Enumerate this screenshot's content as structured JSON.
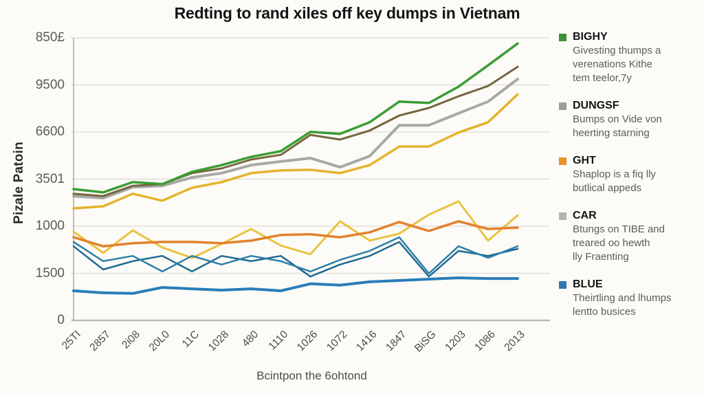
{
  "title": "Redting to rand xiles off key dumps in Vietnam",
  "y_axis": {
    "label": "Pizale Patoin",
    "ticks": [
      "850£",
      "9500",
      "6600",
      "3501",
      "1000",
      "1500",
      "0"
    ]
  },
  "x_axis": {
    "label": "Bcintpon the 6ohtond",
    "ticks": [
      "25TI",
      "2857",
      "2i08",
      "20L0",
      "11C",
      "1028",
      "480",
      "1110",
      "1026",
      "1072",
      "1416",
      "1847",
      "BiSG",
      "1203",
      "1086",
      "2013"
    ]
  },
  "legend": {
    "items": [
      {
        "name": "BIGHY",
        "color": "#3f9136",
        "desc": [
          "Givesting thumps a",
          "verenations Kithe",
          "tem teelor,7y"
        ]
      },
      {
        "name": "DUNGSF",
        "color": "#9d9d9a",
        "desc": [
          "Bumps on Vide von",
          "heerting starning"
        ]
      },
      {
        "name": "GHT",
        "color": "#e9932b",
        "desc": [
          "Shaplop is a fiq lly",
          "butlical appeds"
        ]
      },
      {
        "name": "CAR",
        "color": "#b3b3af",
        "desc": [
          "Btungs on TIBE and",
          "treared oo hewth",
          "lly Fraenting"
        ]
      },
      {
        "name": "BLUE",
        "color": "#2f79ae",
        "desc": [
          "Theirtling and lhumps",
          "lentto busices"
        ]
      }
    ]
  },
  "chart_data": {
    "type": "line",
    "title": "Redting to rand xiles off key dumps in Vietnam",
    "xlabel": "Bcintpon the 6ohtond",
    "ylabel": "Pizale Patoin",
    "x_labels": [
      "25TI",
      "2857",
      "2i08",
      "20L0",
      "11C",
      "1028",
      "480",
      "1110",
      "1026",
      "1072",
      "1416",
      "1847",
      "BiSG",
      "1203",
      "1086",
      "2013"
    ],
    "y_tick_labels": [
      "850£",
      "9500",
      "6600",
      "3501",
      "1000",
      "1500",
      "0"
    ],
    "ylim": [
      0,
      8500
    ],
    "grid": true,
    "legend_position": "right",
    "series": [
      {
        "name": "gold-line",
        "color": "#e5b32d",
        "width": 3.5,
        "values": [
          3370,
          3430,
          3810,
          3600,
          3990,
          4160,
          4430,
          4510,
          4530,
          4430,
          4670,
          5230,
          5230,
          5650,
          5960,
          6800
        ]
      },
      {
        "name": "dungsf-gray-line",
        "color": "#a8a8a4",
        "width": 4,
        "values": [
          3740,
          3680,
          4010,
          4050,
          4300,
          4430,
          4670,
          4780,
          4880,
          4610,
          4940,
          5870,
          5870,
          6230,
          6580,
          7260
        ]
      },
      {
        "name": "brown-line",
        "color": "#75653f",
        "width": 3,
        "values": [
          3810,
          3740,
          4050,
          4100,
          4430,
          4570,
          4840,
          4980,
          5580,
          5440,
          5710,
          6160,
          6390,
          6740,
          7050,
          7630
        ]
      },
      {
        "name": "bighy-green-line",
        "color": "#3a9d32",
        "width": 3.5,
        "values": [
          3950,
          3850,
          4160,
          4100,
          4470,
          4670,
          4920,
          5090,
          5670,
          5610,
          5960,
          6580,
          6540,
          7030,
          7670,
          8330
        ]
      },
      {
        "name": "yellow-zigzag-line",
        "color": "#eac33e",
        "width": 3,
        "values": [
          2670,
          2030,
          2710,
          2190,
          1880,
          2300,
          2750,
          2250,
          1990,
          2980,
          2400,
          2610,
          3180,
          3580,
          2400,
          3160
        ]
      },
      {
        "name": "ght-orange-line",
        "color": "#e2822e",
        "width": 3.5,
        "values": [
          2500,
          2230,
          2320,
          2360,
          2360,
          2320,
          2400,
          2570,
          2590,
          2500,
          2650,
          2960,
          2690,
          2980,
          2750,
          2790
        ]
      },
      {
        "name": "teal-dark-line",
        "color": "#1f6a92",
        "width": 2.5,
        "values": [
          2230,
          1530,
          1780,
          1940,
          1470,
          1940,
          1780,
          1940,
          1320,
          1680,
          1940,
          2360,
          1320,
          2090,
          1940,
          2150
        ]
      },
      {
        "name": "teal-line",
        "color": "#2e7ea8",
        "width": 2.5,
        "values": [
          2360,
          1780,
          1940,
          1470,
          1940,
          1680,
          1940,
          1780,
          1470,
          1820,
          2090,
          2500,
          1410,
          2230,
          1880,
          2230
        ]
      },
      {
        "name": "blue-flat-line",
        "color": "#2a7db8",
        "width": 4,
        "values": [
          890,
          830,
          810,
          990,
          950,
          910,
          950,
          890,
          1100,
          1060,
          1160,
          1200,
          1240,
          1280,
          1260,
          1260
        ]
      }
    ]
  }
}
